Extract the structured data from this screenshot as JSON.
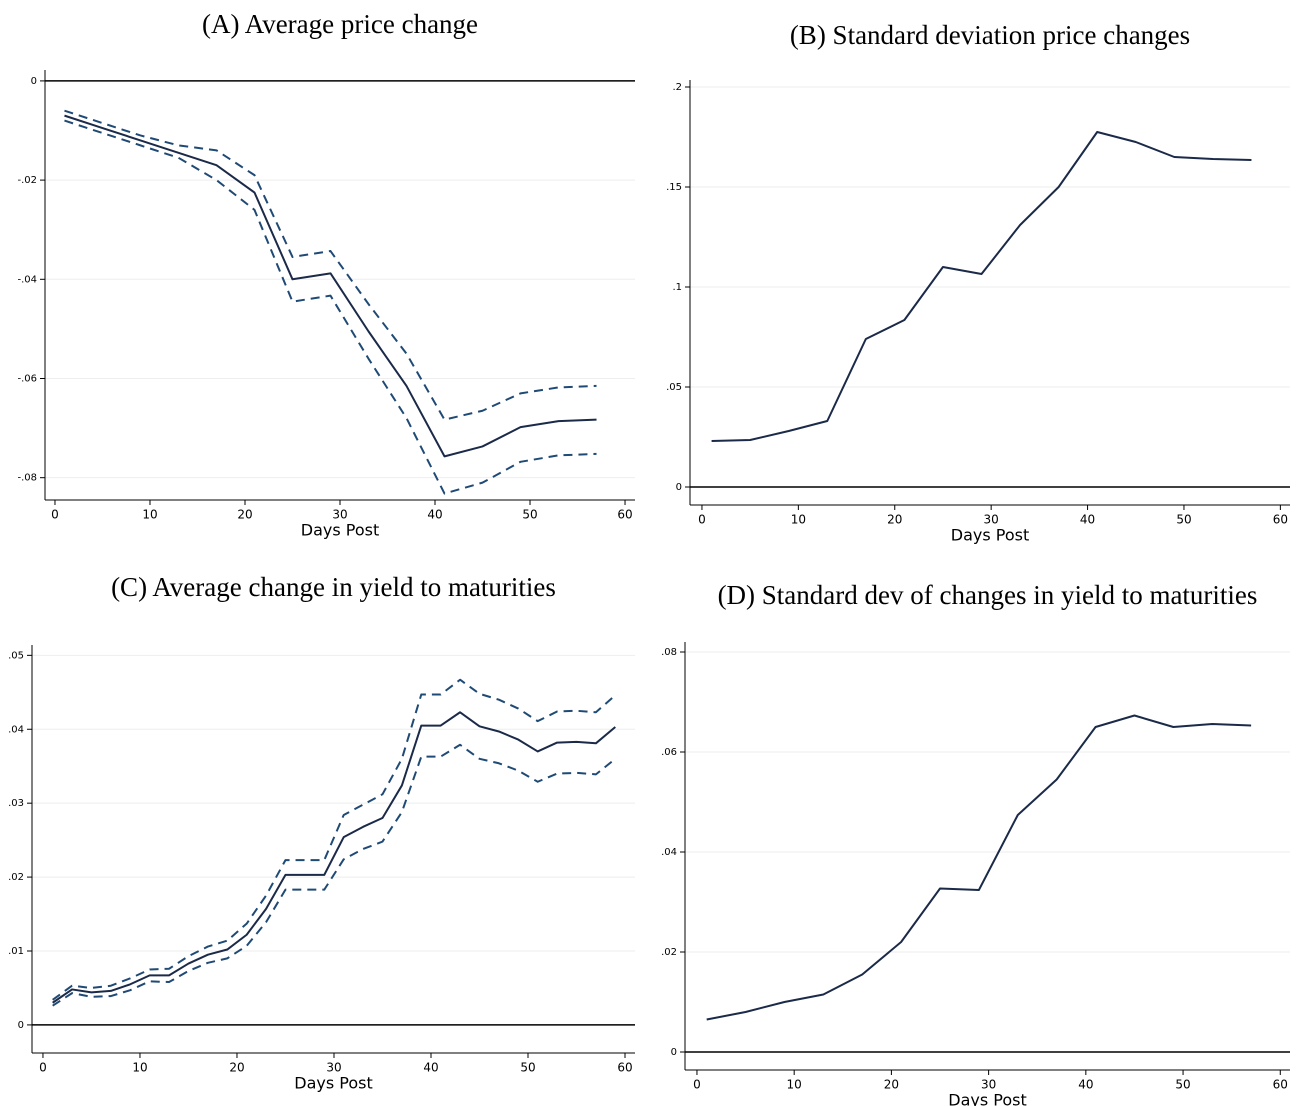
{
  "chart_data": [
    {
      "type": "line",
      "title": "(A) Average price change",
      "x_label": "Days Post",
      "x": [
        1,
        5,
        9,
        13,
        17,
        21,
        25,
        29,
        33,
        37,
        41,
        45,
        49,
        53,
        57
      ],
      "series": [
        {
          "color": "#1b2a49",
          "dashed": false,
          "values": [
            -0.007,
            -0.0095,
            -0.012,
            -0.0145,
            -0.017,
            -0.0225,
            -0.04,
            -0.0388,
            -0.0505,
            -0.0615,
            -0.0757,
            -0.0737,
            -0.0698,
            -0.0686,
            -0.0683
          ]
        },
        {
          "color": "#1f4a75",
          "dashed": true,
          "values": [
            -0.006,
            -0.0085,
            -0.011,
            -0.013,
            -0.014,
            -0.019,
            -0.0355,
            -0.0343,
            -0.045,
            -0.055,
            -0.0683,
            -0.0665,
            -0.063,
            -0.0618,
            -0.0615
          ]
        },
        {
          "color": "#1f4a75",
          "dashed": true,
          "values": [
            -0.008,
            -0.0105,
            -0.013,
            -0.0155,
            -0.02,
            -0.026,
            -0.0445,
            -0.0433,
            -0.056,
            -0.068,
            -0.0832,
            -0.081,
            -0.0768,
            -0.0755,
            -0.0752
          ]
        }
      ],
      "xlim": [
        -1.05,
        61.05
      ],
      "xticks": [
        0,
        10,
        20,
        30,
        40,
        50,
        60
      ],
      "ylim": [
        -0.0845,
        0.0022
      ],
      "yticks": [
        0,
        {
          "value": -0.02,
          "label": "-.02"
        },
        {
          "value": -0.04,
          "label": "-.04"
        },
        {
          "value": -0.06,
          "label": "-.06"
        },
        {
          "value": -0.08,
          "label": "-.08"
        }
      ],
      "yline": 0,
      "grid": true
    },
    {
      "type": "line",
      "title": "(B) Standard deviation price changes",
      "x_label": "Days Post",
      "x": [
        1,
        5,
        9,
        13,
        17,
        21,
        25,
        29,
        33,
        37,
        41,
        45,
        49,
        53,
        57
      ],
      "series": [
        {
          "color": "#1b2a49",
          "dashed": false,
          "values": [
            0.023,
            0.0235,
            0.028,
            0.033,
            0.074,
            0.0835,
            0.11,
            0.1065,
            0.131,
            0.15,
            0.1775,
            0.1725,
            0.165,
            0.164,
            0.1635
          ]
        }
      ],
      "xlim": [
        -1.24,
        61
      ],
      "xticks": [
        0,
        10,
        20,
        30,
        40,
        50,
        60
      ],
      "ylim": [
        -0.009,
        0.2035
      ],
      "yticks": [
        0,
        {
          "value": 0.05,
          "label": ".05"
        },
        {
          "value": 0.1,
          "label": ".1"
        },
        {
          "value": 0.15,
          "label": ".15"
        },
        {
          "value": 0.2,
          "label": ".2"
        }
      ],
      "yline": 0,
      "grid": true
    },
    {
      "type": "line",
      "title": "(C) Average change in yield to maturities",
      "x_label": "Days Post",
      "x": [
        1,
        3,
        5,
        7,
        9,
        11,
        13,
        15,
        17,
        19,
        21,
        23,
        25,
        27,
        29,
        31,
        33,
        35,
        37,
        39,
        41,
        43,
        45,
        47,
        49,
        51,
        53,
        55,
        57,
        59
      ],
      "series": [
        {
          "color": "#1b2a49",
          "dashed": false,
          "values": [
            0.003,
            0.0048,
            0.0044,
            0.0046,
            0.0055,
            0.0067,
            0.0067,
            0.0083,
            0.0095,
            0.0102,
            0.0122,
            0.0157,
            0.0203,
            0.0203,
            0.0203,
            0.0254,
            0.0268,
            0.028,
            0.0324,
            0.0405,
            0.0405,
            0.0423,
            0.0404,
            0.0397,
            0.0386,
            0.037,
            0.0382,
            0.0383,
            0.0381,
            0.0403
          ]
        },
        {
          "color": "#1f4a75",
          "dashed": true,
          "values": [
            0.0034,
            0.0053,
            0.005,
            0.0053,
            0.0063,
            0.0075,
            0.0076,
            0.0093,
            0.0106,
            0.0114,
            0.0137,
            0.0175,
            0.0223,
            0.0223,
            0.0223,
            0.0284,
            0.0298,
            0.0312,
            0.036,
            0.0447,
            0.0447,
            0.0467,
            0.0448,
            0.044,
            0.0428,
            0.0411,
            0.0424,
            0.0425,
            0.0423,
            0.0446
          ]
        },
        {
          "color": "#1f4a75",
          "dashed": true,
          "values": [
            0.0026,
            0.0043,
            0.0038,
            0.0039,
            0.0047,
            0.0059,
            0.0058,
            0.0073,
            0.0084,
            0.009,
            0.0107,
            0.0139,
            0.0183,
            0.0183,
            0.0183,
            0.0224,
            0.0238,
            0.0248,
            0.0288,
            0.0363,
            0.0363,
            0.0379,
            0.036,
            0.0354,
            0.0344,
            0.0329,
            0.034,
            0.0341,
            0.0339,
            0.036
          ]
        }
      ],
      "xlim": [
        -1.13,
        61.03
      ],
      "xticks": [
        0,
        10,
        20,
        30,
        40,
        50,
        60
      ],
      "ylim": [
        -0.0038,
        0.0514
      ],
      "yticks": [
        0,
        {
          "value": 0.01,
          "label": ".01"
        },
        {
          "value": 0.02,
          "label": ".02"
        },
        {
          "value": 0.03,
          "label": ".03"
        },
        {
          "value": 0.04,
          "label": ".04"
        },
        {
          "value": 0.05,
          "label": ".05"
        }
      ],
      "yline": 0,
      "grid": true
    },
    {
      "type": "line",
      "title": "(D) Standard dev of changes in yield to maturities",
      "x_label": "Days Post",
      "x": [
        1,
        5,
        9,
        13,
        17,
        21,
        25,
        29,
        33,
        37,
        41,
        45,
        49,
        53,
        57
      ],
      "series": [
        {
          "color": "#1b2a49",
          "dashed": false,
          "values": [
            0.0065,
            0.008,
            0.01,
            0.0115,
            0.0155,
            0.022,
            0.0327,
            0.0324,
            0.0474,
            0.0545,
            0.065,
            0.0673,
            0.065,
            0.0656,
            0.0653
          ]
        }
      ],
      "xlim": [
        -1.23,
        61
      ],
      "xticks": [
        0,
        10,
        20,
        30,
        40,
        50,
        60
      ],
      "ylim": [
        -0.0036,
        0.082
      ],
      "yticks": [
        0,
        {
          "value": 0.02,
          "label": ".02"
        },
        {
          "value": 0.04,
          "label": ".04"
        },
        {
          "value": 0.06,
          "label": ".06"
        },
        {
          "value": 0.08,
          "label": ".08"
        }
      ],
      "yline": 0,
      "grid": true
    }
  ]
}
